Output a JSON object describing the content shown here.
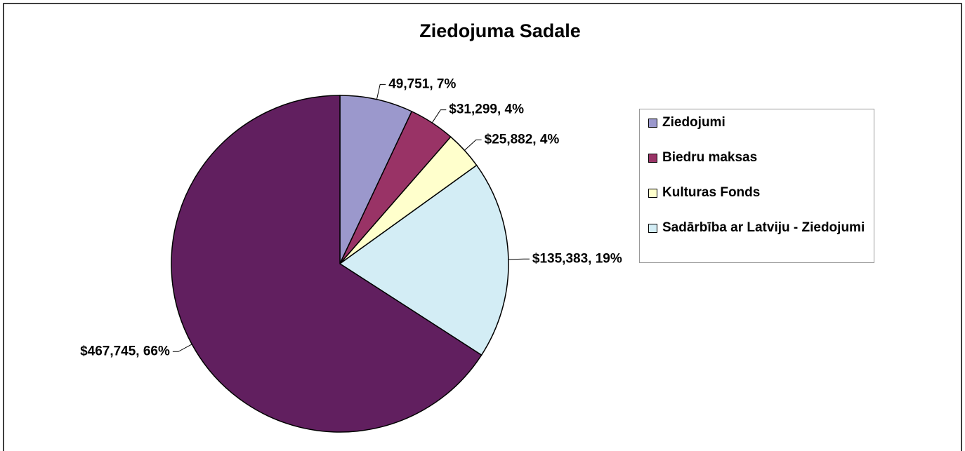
{
  "chart_data": {
    "type": "pie",
    "title": "Ziedojuma Sadale",
    "categories": [
      "Ziedojumi",
      "Biedru maksas",
      "Kulturas Fonds",
      "Sadārbība ar Latviju - Ziedojumi",
      null
    ],
    "values": [
      49751,
      31299,
      25882,
      135383,
      467745
    ],
    "value_labels": [
      "49,751, 7%",
      "$31,299, 4%",
      "$25,882, 4%",
      "$135,383, 19%",
      "$467,745, 66%"
    ],
    "colors": [
      "#9b98cc",
      "#993366",
      "#ffffcc",
      "#d3edf5",
      "#611f5f"
    ],
    "legend": "right"
  }
}
